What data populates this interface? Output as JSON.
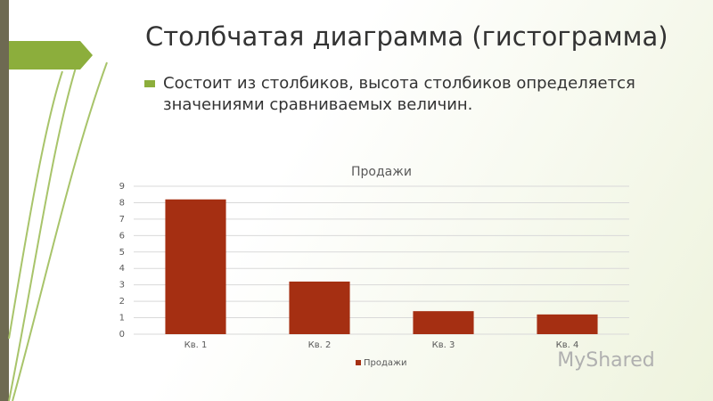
{
  "slide": {
    "title": "Столбчатая диаграмма (гистограмма)",
    "bullet": "Состоит из столбиков, высота столбиков определяется значениями сравниваемых величин.",
    "watermark": "MyShared"
  },
  "chart_data": {
    "type": "bar",
    "title": "Продажи",
    "categories": [
      "Кв. 1",
      "Кв. 2",
      "Кв. 3",
      "Кв. 4"
    ],
    "series": [
      {
        "name": "Продажи",
        "color": "#a52f12",
        "values": [
          8.2,
          3.2,
          1.4,
          1.2
        ]
      }
    ],
    "ylim": [
      0,
      9
    ],
    "yticks": [
      0,
      1,
      2,
      3,
      4,
      5,
      6,
      7,
      8,
      9
    ],
    "grid": true,
    "legend": "bottom"
  }
}
